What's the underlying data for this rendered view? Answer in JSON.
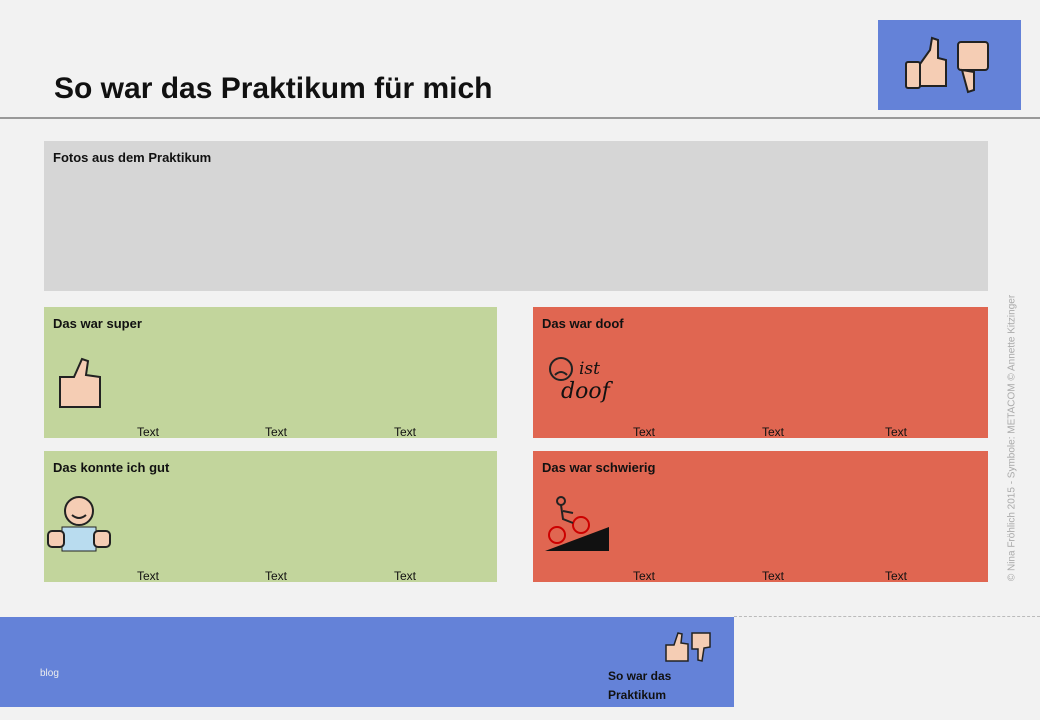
{
  "header": {
    "title": "So war das Praktikum für mich"
  },
  "photos": {
    "title": "Fotos aus dem Praktikum"
  },
  "panels": [
    {
      "title": "Das war super",
      "texts": [
        "Text",
        "Text",
        "Text"
      ]
    },
    {
      "title": "Das war doof",
      "icon_text": [
        "ist",
        "doof"
      ],
      "texts": [
        "Text",
        "Text",
        "Text"
      ]
    },
    {
      "title": "Das konnte ich gut",
      "texts": [
        "Text",
        "Text",
        "Text"
      ]
    },
    {
      "title": "Das war schwierig",
      "texts": [
        "Text",
        "Text",
        "Text"
      ]
    }
  ],
  "credit": "© Nina Fröhlich 2015 - Symbole: METACOM © Annette Kitzinger",
  "footer": {
    "blog": "blog",
    "title": "So war das Praktikum"
  }
}
